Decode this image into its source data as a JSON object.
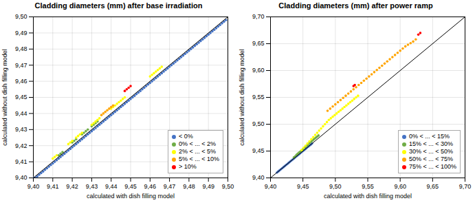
{
  "chart_data": [
    {
      "type": "scatter",
      "title": "Cladding diameters (mm) after base irradiation",
      "xlabel": "calculated with dish filling model",
      "ylabel": "calculated without dish filling model",
      "xlim": [
        9.4,
        9.5
      ],
      "ylim": [
        9.4,
        9.5
      ],
      "xticks": [
        {
          "value": 9.4,
          "label": "9,40"
        },
        {
          "value": 9.41,
          "label": "9,41"
        },
        {
          "value": 9.42,
          "label": "9,42"
        },
        {
          "value": 9.43,
          "label": "9,43"
        },
        {
          "value": 9.44,
          "label": "9,44"
        },
        {
          "value": 9.45,
          "label": "9,45"
        },
        {
          "value": 9.46,
          "label": "9,46"
        },
        {
          "value": 9.47,
          "label": "9,47"
        },
        {
          "value": 9.48,
          "label": "9,48"
        },
        {
          "value": 9.49,
          "label": "9,49"
        },
        {
          "value": 9.5,
          "label": "9,50"
        }
      ],
      "yticks": [
        {
          "value": 9.4,
          "label": "9,40"
        },
        {
          "value": 9.41,
          "label": "9,41"
        },
        {
          "value": 9.42,
          "label": "9,42"
        },
        {
          "value": 9.43,
          "label": "9,43"
        },
        {
          "value": 9.44,
          "label": "9,44"
        },
        {
          "value": 9.45,
          "label": "9,45"
        },
        {
          "value": 9.46,
          "label": "9,46"
        },
        {
          "value": 9.47,
          "label": "9,47"
        },
        {
          "value": 9.48,
          "label": "9,48"
        },
        {
          "value": 9.49,
          "label": "9,49"
        },
        {
          "value": 9.5,
          "label": "9,50"
        }
      ],
      "grid": true,
      "legend": "lower right",
      "series": [
        {
          "name": "< 0%",
          "color": "#4472C4",
          "x": [
            9.4,
            9.401,
            9.402,
            9.403,
            9.404,
            9.405,
            9.406,
            9.407,
            9.408,
            9.409,
            9.41,
            9.411,
            9.412,
            9.413,
            9.414,
            9.415,
            9.416,
            9.417,
            9.418,
            9.419,
            9.42,
            9.421,
            9.422,
            9.423,
            9.424,
            9.425,
            9.426,
            9.427,
            9.428,
            9.429,
            9.43,
            9.431,
            9.432,
            9.433,
            9.434,
            9.435,
            9.436,
            9.437,
            9.438,
            9.439,
            9.44,
            9.441,
            9.442,
            9.443,
            9.444,
            9.445,
            9.446,
            9.447,
            9.448,
            9.449,
            9.45,
            9.451,
            9.452,
            9.453,
            9.454,
            9.455,
            9.456,
            9.457,
            9.458,
            9.459,
            9.46,
            9.461,
            9.462,
            9.463,
            9.464,
            9.465,
            9.466,
            9.467,
            9.468,
            9.469,
            9.47,
            9.471,
            9.472,
            9.473,
            9.474,
            9.475,
            9.476,
            9.477,
            9.478,
            9.479,
            9.48,
            9.481,
            9.482,
            9.483,
            9.484,
            9.485,
            9.486,
            9.487,
            9.488,
            9.489,
            9.49,
            9.491,
            9.492,
            9.493,
            9.494,
            9.495,
            9.496,
            9.497,
            9.498,
            9.499
          ],
          "values": [
            9.4,
            9.4,
            9.401,
            9.402,
            9.403,
            9.404,
            9.405,
            9.406,
            9.407,
            9.408,
            9.409,
            9.41,
            9.411,
            9.412,
            9.413,
            9.414,
            9.415,
            9.416,
            9.417,
            9.418,
            9.419,
            9.42,
            9.421,
            9.422,
            9.423,
            9.424,
            9.425,
            9.426,
            9.427,
            9.428,
            9.429,
            9.43,
            9.431,
            9.432,
            9.433,
            9.434,
            9.435,
            9.436,
            9.437,
            9.438,
            9.439,
            9.44,
            9.441,
            9.442,
            9.443,
            9.444,
            9.445,
            9.446,
            9.447,
            9.448,
            9.449,
            9.45,
            9.451,
            9.452,
            9.453,
            9.454,
            9.455,
            9.456,
            9.457,
            9.458,
            9.459,
            9.46,
            9.461,
            9.462,
            9.463,
            9.464,
            9.465,
            9.466,
            9.467,
            9.468,
            9.469,
            9.47,
            9.471,
            9.472,
            9.473,
            9.474,
            9.475,
            9.476,
            9.477,
            9.478,
            9.479,
            9.48,
            9.481,
            9.482,
            9.483,
            9.484,
            9.485,
            9.486,
            9.487,
            9.488,
            9.489,
            9.49,
            9.491,
            9.492,
            9.493,
            9.494,
            9.495,
            9.496,
            9.497,
            9.498
          ]
        },
        {
          "name": "0% < ... < 2%",
          "color": "#70AD47",
          "x": [
            9.413,
            9.414,
            9.415,
            9.42,
            9.421,
            9.422,
            9.425,
            9.426,
            9.427,
            9.428,
            9.43,
            9.431,
            9.432,
            9.433
          ],
          "values": [
            9.414,
            9.415,
            9.416,
            9.422,
            9.423,
            9.424,
            9.427,
            9.428,
            9.429,
            9.43,
            9.432,
            9.433,
            9.434,
            9.435
          ]
        },
        {
          "name": "2% < ... < 5%",
          "color": "#FFFF00",
          "x": [
            9.41,
            9.411,
            9.412,
            9.418,
            9.419,
            9.42,
            9.422,
            9.423,
            9.424,
            9.425,
            9.43,
            9.431,
            9.432,
            9.433,
            9.434,
            9.44,
            9.441,
            9.442,
            9.443,
            9.444,
            9.445,
            9.446,
            9.447,
            9.46,
            9.461,
            9.462,
            9.463,
            9.464,
            9.465,
            9.466
          ],
          "values": [
            9.412,
            9.413,
            9.414,
            9.421,
            9.422,
            9.423,
            9.425,
            9.426,
            9.427,
            9.428,
            9.433,
            9.434,
            9.435,
            9.436,
            9.437,
            9.443,
            9.444,
            9.445,
            9.446,
            9.447,
            9.448,
            9.449,
            9.45,
            9.463,
            9.464,
            9.465,
            9.466,
            9.467,
            9.468,
            9.469
          ]
        },
        {
          "name": "5% < ... < 10%",
          "color": "#FFA500",
          "x": [
            9.435,
            9.436,
            9.437,
            9.438,
            9.439,
            9.44,
            9.441
          ],
          "values": [
            9.439,
            9.44,
            9.441,
            9.442,
            9.443,
            9.444,
            9.445
          ]
        },
        {
          "name": "> 10%",
          "color": "#FF0000",
          "x": [
            9.447,
            9.448,
            9.449,
            9.45
          ],
          "values": [
            9.454,
            9.455,
            9.456,
            9.457
          ]
        }
      ]
    },
    {
      "type": "scatter",
      "title": "Cladding diameters (mm) after power ramp",
      "xlabel": "calculated with dish filling model",
      "ylabel": "calculated without dish filling model",
      "xlim": [
        9.4,
        9.7
      ],
      "ylim": [
        9.4,
        9.7
      ],
      "xticks": [
        {
          "value": 9.4,
          "label": "9,40"
        },
        {
          "value": 9.45,
          "label": "9,45"
        },
        {
          "value": 9.5,
          "label": "9,50"
        },
        {
          "value": 9.55,
          "label": "9,55"
        },
        {
          "value": 9.6,
          "label": "9,60"
        },
        {
          "value": 9.65,
          "label": "9,65"
        },
        {
          "value": 9.7,
          "label": "9,70"
        }
      ],
      "yticks": [
        {
          "value": 9.4,
          "label": "9,40"
        },
        {
          "value": 9.45,
          "label": "9,45"
        },
        {
          "value": 9.5,
          "label": "9,50"
        },
        {
          "value": 9.55,
          "label": "9,55"
        },
        {
          "value": 9.6,
          "label": "9,60"
        },
        {
          "value": 9.65,
          "label": "9,65"
        },
        {
          "value": 9.7,
          "label": "9,70"
        }
      ],
      "grid": true,
      "legend": "lower right",
      "series": [
        {
          "name": "0% < ... < 15%",
          "color": "#4472C4",
          "x": [
            9.41,
            9.412,
            9.414,
            9.416,
            9.418,
            9.42,
            9.422,
            9.424,
            9.426,
            9.428,
            9.43,
            9.432,
            9.434,
            9.436,
            9.438,
            9.44,
            9.442,
            9.444,
            9.446,
            9.448,
            9.45,
            9.452,
            9.454,
            9.456,
            9.458,
            9.46,
            9.462,
            9.464
          ],
          "values": [
            9.41,
            9.412,
            9.414,
            9.416,
            9.418,
            9.42,
            9.422,
            9.424,
            9.426,
            9.428,
            9.43,
            9.432,
            9.434,
            9.436,
            9.438,
            9.44,
            9.442,
            9.444,
            9.446,
            9.448,
            9.45,
            9.452,
            9.454,
            9.456,
            9.458,
            9.46,
            9.462,
            9.464
          ]
        },
        {
          "name": "15% < ... < 30%",
          "color": "#70AD47",
          "x": [
            9.436,
            9.438,
            9.44,
            9.442,
            9.444,
            9.446,
            9.448,
            9.45,
            9.452,
            9.454,
            9.456,
            9.458,
            9.46,
            9.462,
            9.464,
            9.466,
            9.468,
            9.47,
            9.472,
            9.474
          ],
          "values": [
            9.438,
            9.44,
            9.443,
            9.445,
            9.447,
            9.449,
            9.451,
            9.453,
            9.456,
            9.458,
            9.46,
            9.462,
            9.465,
            9.467,
            9.469,
            9.471,
            9.473,
            9.475,
            9.477,
            9.479
          ]
        },
        {
          "name": "30% < ... < 50%",
          "color": "#FFFF00",
          "x": [
            9.448,
            9.451,
            9.454,
            9.457,
            9.46,
            9.463,
            9.466,
            9.469,
            9.472,
            9.475,
            9.478,
            9.481,
            9.484,
            9.487,
            9.49,
            9.493,
            9.496,
            9.499,
            9.502,
            9.505,
            9.508,
            9.511,
            9.514,
            9.517,
            9.52,
            9.523,
            9.526,
            9.529,
            9.532,
            9.535
          ],
          "values": [
            9.452,
            9.456,
            9.46,
            9.464,
            9.468,
            9.472,
            9.476,
            9.48,
            9.484,
            9.488,
            9.492,
            9.496,
            9.5,
            9.504,
            9.508,
            9.511,
            9.514,
            9.517,
            9.52,
            9.523,
            9.526,
            9.529,
            9.532,
            9.535,
            9.538,
            9.541,
            9.544,
            9.547,
            9.55,
            9.553
          ]
        },
        {
          "name": "50% < ... < 75%",
          "color": "#FFA500",
          "x": [
            9.488,
            9.492,
            9.496,
            9.5,
            9.504,
            9.508,
            9.512,
            9.516,
            9.52,
            9.524,
            9.528,
            9.532,
            9.536,
            9.54,
            9.544,
            9.548,
            9.552,
            9.556,
            9.56,
            9.564,
            9.568,
            9.572,
            9.576,
            9.58,
            9.584,
            9.588,
            9.592,
            9.596,
            9.6,
            9.604,
            9.608,
            9.612,
            9.616,
            9.62,
            9.624
          ],
          "values": [
            9.525,
            9.529,
            9.533,
            9.537,
            9.541,
            9.545,
            9.549,
            9.553,
            9.557,
            9.561,
            9.565,
            9.569,
            9.573,
            9.577,
            9.581,
            9.585,
            9.589,
            9.593,
            9.597,
            9.601,
            9.605,
            9.609,
            9.613,
            9.617,
            9.621,
            9.625,
            9.629,
            9.633,
            9.637,
            9.641,
            9.645,
            9.648,
            9.651,
            9.654,
            9.658
          ]
        },
        {
          "name": "75% < ... < 100%",
          "color": "#FF0000",
          "x": [
            9.528,
            9.53,
            9.628,
            9.631
          ],
          "values": [
            9.571,
            9.573,
            9.667,
            9.67
          ]
        }
      ]
    }
  ]
}
